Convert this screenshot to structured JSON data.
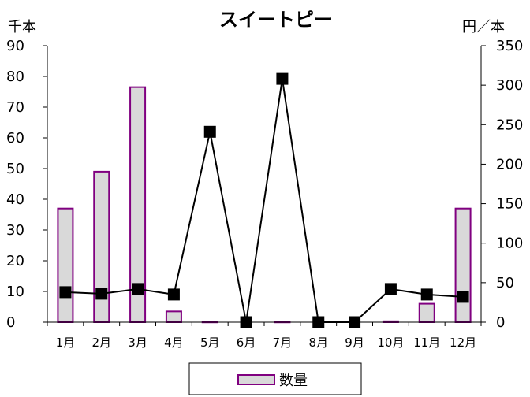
{
  "chart_data": {
    "type": "bar",
    "title": "スイートピー",
    "left_axis_unit": "千本",
    "right_axis_unit": "円／本",
    "categories": [
      "1月",
      "2月",
      "3月",
      "4月",
      "5月",
      "6月",
      "7月",
      "8月",
      "9月",
      "10月",
      "11月",
      "12月"
    ],
    "left_ylim": [
      0,
      90
    ],
    "left_ticks": [
      "0",
      "10",
      "20",
      "30",
      "40",
      "50",
      "60",
      "70",
      "80",
      "90"
    ],
    "right_ylim": [
      0,
      350
    ],
    "right_ticks": [
      "0",
      "50",
      "100",
      "150",
      "200",
      "250",
      "300",
      "350"
    ],
    "grid": false,
    "legend_position": "bottom",
    "series": [
      {
        "name": "数量",
        "type": "bar",
        "axis": "left",
        "values": [
          37,
          49,
          76.5,
          3.5,
          0.2,
          0,
          0.2,
          0,
          0,
          0.3,
          6,
          37
        ],
        "fill": "#d9d9d9",
        "stroke": "#800080"
      },
      {
        "type": "line",
        "axis": "right",
        "values": [
          38,
          36,
          42,
          35,
          241,
          0,
          308,
          0,
          0,
          42,
          35,
          32
        ],
        "color": "#000000"
      }
    ]
  }
}
